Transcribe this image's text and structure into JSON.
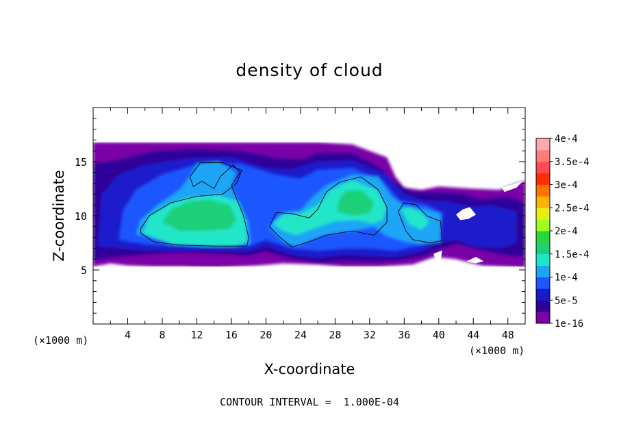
{
  "chart_data": {
    "type": "heatmap",
    "title": "density of cloud",
    "xlabel": "X-coordinate",
    "ylabel": "Z-coordinate",
    "x_unit": "(×1000 m)",
    "y_unit": "(×1000 m)",
    "xlim": [
      0,
      50
    ],
    "ylim": [
      0,
      20
    ],
    "x_ticks": [
      4,
      8,
      12,
      16,
      20,
      24,
      28,
      32,
      36,
      40,
      44,
      48
    ],
    "y_ticks": [
      5,
      10,
      15
    ],
    "colorbar": {
      "labels": [
        "1e-16",
        "5e-5",
        "1e-4",
        "1.5e-4",
        "2e-4",
        "2.5e-4",
        "3e-4",
        "3.5e-4",
        "4e-4"
      ],
      "values": [
        1e-16,
        5e-05,
        0.0001,
        0.00015,
        0.0002,
        0.00025,
        0.0003,
        0.00035,
        0.0004
      ],
      "colors": [
        "#7a00a8",
        "#2e0099",
        "#1a1acd",
        "#1e56ff",
        "#1aa6f5",
        "#20e6c8",
        "#1ed07a",
        "#28d83a",
        "#9cff1e",
        "#e6f00f",
        "#ffb300",
        "#ff7400",
        "#ff2e00",
        "#ff4a55",
        "#ff7c7c",
        "#ffaaaa"
      ]
    },
    "footnote": "CONTOUR INTERVAL =  1.000E-04",
    "contour_level": 0.0001,
    "cloud_layer_z": [
      5.2,
      16.9
    ],
    "regions": [
      {
        "level": 1,
        "points": [
          [
            0,
            5.3
          ],
          [
            2,
            5.6
          ],
          [
            4,
            5.4
          ],
          [
            7,
            5.3
          ],
          [
            10,
            5.3
          ],
          [
            14,
            5.2
          ],
          [
            19,
            5.4
          ],
          [
            22,
            5.6
          ],
          [
            26,
            5.5
          ],
          [
            29,
            5.3
          ],
          [
            33,
            5.3
          ],
          [
            37,
            5.5
          ],
          [
            39.5,
            6.2
          ],
          [
            42,
            6
          ],
          [
            45,
            5.4
          ],
          [
            50,
            5.2
          ],
          [
            50,
            13.2
          ],
          [
            49,
            13
          ],
          [
            47,
            12.4
          ],
          [
            44,
            12.5
          ],
          [
            42,
            12.6
          ],
          [
            40,
            12.7
          ],
          [
            38,
            12.4
          ],
          [
            36,
            12.6
          ],
          [
            35,
            13.6
          ],
          [
            34,
            15.4
          ],
          [
            30,
            16.6
          ],
          [
            26,
            16.8
          ],
          [
            20,
            16.8
          ],
          [
            14,
            16.8
          ],
          [
            8,
            16.8
          ],
          [
            0,
            16.8
          ]
        ]
      },
      {
        "level": 2,
        "points": [
          [
            0,
            5.9
          ],
          [
            3,
            6.2
          ],
          [
            6,
            6.4
          ],
          [
            10,
            6.6
          ],
          [
            14,
            6.5
          ],
          [
            18,
            6.3
          ],
          [
            20,
            6.7
          ],
          [
            23,
            6
          ],
          [
            26,
            5.6
          ],
          [
            29,
            5.8
          ],
          [
            32,
            5.7
          ],
          [
            35,
            5.8
          ],
          [
            38,
            6.2
          ],
          [
            40,
            6.8
          ],
          [
            42,
            7.4
          ],
          [
            45,
            6.8
          ],
          [
            48,
            6.3
          ],
          [
            50,
            6.2
          ],
          [
            50,
            11.2
          ],
          [
            48,
            11.8
          ],
          [
            45,
            11.5
          ],
          [
            43,
            12
          ],
          [
            40,
            12.2
          ],
          [
            37,
            12.2
          ],
          [
            35,
            13.1
          ],
          [
            33,
            14.6
          ],
          [
            30,
            15.8
          ],
          [
            26,
            15.8
          ],
          [
            24,
            15.2
          ],
          [
            21,
            15.4
          ],
          [
            17,
            16
          ],
          [
            12,
            16.2
          ],
          [
            7,
            16
          ],
          [
            3,
            15.2
          ],
          [
            0,
            14.8
          ]
        ]
      },
      {
        "level": 3,
        "points": [
          [
            0.5,
            7.2
          ],
          [
            3,
            7
          ],
          [
            6,
            6.8
          ],
          [
            10,
            6.8
          ],
          [
            14,
            6.8
          ],
          [
            18,
            6.7
          ],
          [
            20,
            7.2
          ],
          [
            23,
            6.4
          ],
          [
            26,
            6.1
          ],
          [
            29,
            6.4
          ],
          [
            32,
            6.3
          ],
          [
            35,
            6.2
          ],
          [
            38,
            6.7
          ],
          [
            40,
            7.5
          ],
          [
            42,
            7.8
          ],
          [
            44,
            7.2
          ],
          [
            47,
            7
          ],
          [
            49,
            7.5
          ],
          [
            49,
            10.4
          ],
          [
            46,
            11
          ],
          [
            44,
            10.8
          ],
          [
            41,
            11.3
          ],
          [
            38,
            11.4
          ],
          [
            36,
            12
          ],
          [
            34,
            13.8
          ],
          [
            30,
            15.1
          ],
          [
            26,
            15
          ],
          [
            23,
            14.3
          ],
          [
            20,
            14.4
          ],
          [
            16,
            15.4
          ],
          [
            11,
            15.3
          ],
          [
            6,
            14.7
          ],
          [
            3,
            13.8
          ],
          [
            1,
            12
          ]
        ]
      },
      {
        "level": 4,
        "points": [
          [
            3,
            7.8
          ],
          [
            6,
            7.4
          ],
          [
            10,
            7.2
          ],
          [
            14,
            7.1
          ],
          [
            18,
            7.2
          ],
          [
            20,
            7.8
          ],
          [
            23,
            7
          ],
          [
            26,
            6.8
          ],
          [
            29,
            7
          ],
          [
            32,
            7
          ],
          [
            35,
            6.8
          ],
          [
            38,
            7.3
          ],
          [
            40,
            8
          ],
          [
            40.5,
            10.2
          ],
          [
            38.5,
            11
          ],
          [
            35.5,
            11.4
          ],
          [
            33.5,
            13.2
          ],
          [
            30,
            14.4
          ],
          [
            26,
            14.2
          ],
          [
            24,
            13.4
          ],
          [
            21,
            13.8
          ],
          [
            17,
            14.8
          ],
          [
            12,
            14.7
          ],
          [
            8,
            13.8
          ],
          [
            5,
            12.4
          ],
          [
            3.5,
            10.5
          ]
        ]
      },
      {
        "level": 5,
        "points": [
          [
            5,
            8.3
          ],
          [
            8,
            7.7
          ],
          [
            12,
            7.4
          ],
          [
            16,
            7.2
          ],
          [
            18.2,
            7.4
          ],
          [
            18,
            9.3
          ],
          [
            17,
            11
          ],
          [
            16,
            12.6
          ],
          [
            16.5,
            14
          ],
          [
            14.5,
            15
          ],
          [
            12,
            14.8
          ],
          [
            11,
            13.4
          ],
          [
            10,
            12.4
          ],
          [
            7.5,
            11
          ],
          [
            5.5,
            9.6
          ]
        ]
      },
      {
        "level": 5,
        "points": [
          [
            20.3,
            9
          ],
          [
            22,
            7.6
          ],
          [
            23.5,
            7.2
          ],
          [
            25,
            7.7
          ],
          [
            27,
            8.3
          ],
          [
            30,
            8.6
          ],
          [
            32.5,
            9
          ],
          [
            33.8,
            8.2
          ],
          [
            36,
            7.6
          ],
          [
            38,
            7.4
          ],
          [
            40.2,
            7.6
          ],
          [
            40.2,
            10.2
          ],
          [
            38.5,
            10.6
          ],
          [
            36,
            10.9
          ],
          [
            34.5,
            11.8
          ],
          [
            33,
            13.6
          ],
          [
            30,
            13.8
          ],
          [
            27,
            12.8
          ],
          [
            25.5,
            11.8
          ],
          [
            24,
            10.5
          ],
          [
            22,
            10.3
          ]
        ]
      },
      {
        "level": 6,
        "points": [
          [
            5.8,
            8.4
          ],
          [
            9,
            7.4
          ],
          [
            13,
            7.2
          ],
          [
            16.5,
            7.2
          ],
          [
            17.8,
            7.6
          ],
          [
            17.6,
            9.6
          ],
          [
            16.8,
            11.3
          ],
          [
            14.5,
            11.9
          ],
          [
            11,
            11.7
          ],
          [
            8.5,
            11
          ],
          [
            6.5,
            10
          ]
        ]
      },
      {
        "level": 6,
        "points": [
          [
            20.8,
            9.3
          ],
          [
            22,
            8.6
          ],
          [
            23.5,
            8.2
          ],
          [
            25.5,
            8.8
          ],
          [
            28,
            9.5
          ],
          [
            30.5,
            9.6
          ],
          [
            32.5,
            9.3
          ],
          [
            33.5,
            9.6
          ],
          [
            34,
            10.8
          ],
          [
            32.8,
            12.4
          ],
          [
            30,
            13.3
          ],
          [
            27.5,
            12.4
          ],
          [
            26,
            11
          ],
          [
            24,
            10.2
          ],
          [
            22,
            10.1
          ]
        ]
      },
      {
        "level": 6,
        "points": [
          [
            35.6,
            10.6
          ],
          [
            36.6,
            9.2
          ],
          [
            38,
            8.7
          ],
          [
            38.9,
            9.4
          ],
          [
            38,
            10.3
          ],
          [
            36.6,
            10.8
          ]
        ]
      },
      {
        "level": 7,
        "points": [
          [
            8,
            9.4
          ],
          [
            10,
            8.6
          ],
          [
            13,
            8.6
          ],
          [
            15.8,
            8.8
          ],
          [
            16.6,
            9.6
          ],
          [
            15.8,
            11
          ],
          [
            13.5,
            11.5
          ],
          [
            11,
            11.3
          ],
          [
            9,
            10.6
          ]
        ]
      },
      {
        "level": 7,
        "points": [
          [
            28.2,
            10.4
          ],
          [
            30,
            10
          ],
          [
            32,
            10.2
          ],
          [
            32.5,
            11.2
          ],
          [
            31,
            12.4
          ],
          [
            29.2,
            12.3
          ],
          [
            28.4,
            11.4
          ]
        ]
      }
    ],
    "contour_lines": [
      [
        [
          5.5,
          8.4
        ],
        [
          7,
          7.6
        ],
        [
          10,
          7.3
        ],
        [
          14,
          7.2
        ],
        [
          17.8,
          7.2
        ],
        [
          18,
          8
        ],
        [
          17.4,
          10
        ],
        [
          16.6,
          11.6
        ],
        [
          16,
          12.8
        ],
        [
          17,
          14
        ],
        [
          16.2,
          14.7
        ],
        [
          14.7,
          13.6
        ],
        [
          14,
          12.5
        ],
        [
          12.6,
          13.2
        ],
        [
          11.6,
          12.7
        ],
        [
          11.2,
          13.6
        ],
        [
          12.4,
          14.9
        ],
        [
          15,
          14.9
        ],
        [
          17.2,
          14.2
        ],
        [
          16.6,
          13
        ],
        [
          15,
          12
        ],
        [
          12,
          11.8
        ],
        [
          9,
          11.2
        ],
        [
          6.5,
          10
        ],
        [
          5.5,
          8.8
        ],
        [
          5.5,
          8.4
        ]
      ],
      [
        [
          20.4,
          9
        ],
        [
          21.5,
          8.1
        ],
        [
          23,
          7.1
        ],
        [
          25,
          7.6
        ],
        [
          27,
          8.2
        ],
        [
          30,
          8.6
        ],
        [
          32.5,
          8.2
        ],
        [
          34,
          9.4
        ],
        [
          34,
          10.8
        ],
        [
          33,
          12.4
        ],
        [
          31,
          13.6
        ],
        [
          28.5,
          13.1
        ],
        [
          27,
          12.2
        ],
        [
          26,
          10.6
        ],
        [
          25,
          9.8
        ],
        [
          23,
          10.2
        ],
        [
          21.2,
          10.3
        ],
        [
          20.4,
          9
        ]
      ],
      [
        [
          35.3,
          10.4
        ],
        [
          36.2,
          8.6
        ],
        [
          37,
          7.8
        ],
        [
          39,
          7.5
        ],
        [
          40.4,
          7.7
        ],
        [
          40.2,
          9.5
        ],
        [
          38.6,
          10
        ],
        [
          37.4,
          11
        ],
        [
          36,
          11.2
        ],
        [
          35.3,
          10.4
        ]
      ]
    ],
    "gaps": [
      {
        "type": "below",
        "x": [
          0,
          50
        ],
        "z_top": 5.3
      },
      {
        "type": "above",
        "x": [
          0,
          50
        ],
        "z_bottom": 16.8
      },
      {
        "type": "hole",
        "points": [
          [
            36.4,
            15.3
          ],
          [
            37.3,
            14.8
          ],
          [
            38.5,
            14.8
          ],
          [
            39.2,
            14.4
          ],
          [
            38.6,
            14.1
          ],
          [
            37.2,
            14.4
          ],
          [
            36.4,
            14.9
          ]
        ]
      },
      {
        "type": "hole",
        "points": [
          [
            41.4,
            13.8
          ],
          [
            42.2,
            13.6
          ],
          [
            43.2,
            13.9
          ],
          [
            42.6,
            13.1
          ],
          [
            41.8,
            13.3
          ]
        ]
      },
      {
        "type": "hole",
        "points": [
          [
            47.3,
            12.6
          ],
          [
            48.5,
            12.9
          ],
          [
            49.7,
            13.2
          ],
          [
            49,
            12.6
          ],
          [
            47.6,
            12.2
          ]
        ]
      },
      {
        "type": "hole",
        "points": [
          [
            42,
            10.1
          ],
          [
            42.8,
            10.6
          ],
          [
            43.6,
            10.8
          ],
          [
            44.3,
            10.1
          ],
          [
            43.4,
            9.7
          ],
          [
            42.5,
            9.6
          ]
        ]
      },
      {
        "type": "hole",
        "points": [
          [
            39.4,
            6.5
          ],
          [
            40.4,
            6.8
          ],
          [
            40.2,
            5.8
          ],
          [
            39.6,
            5.9
          ]
        ]
      },
      {
        "type": "hole",
        "points": [
          [
            43.2,
            5.8
          ],
          [
            44.3,
            6.2
          ],
          [
            45.2,
            5.8
          ],
          [
            44.2,
            5.6
          ]
        ]
      }
    ]
  }
}
